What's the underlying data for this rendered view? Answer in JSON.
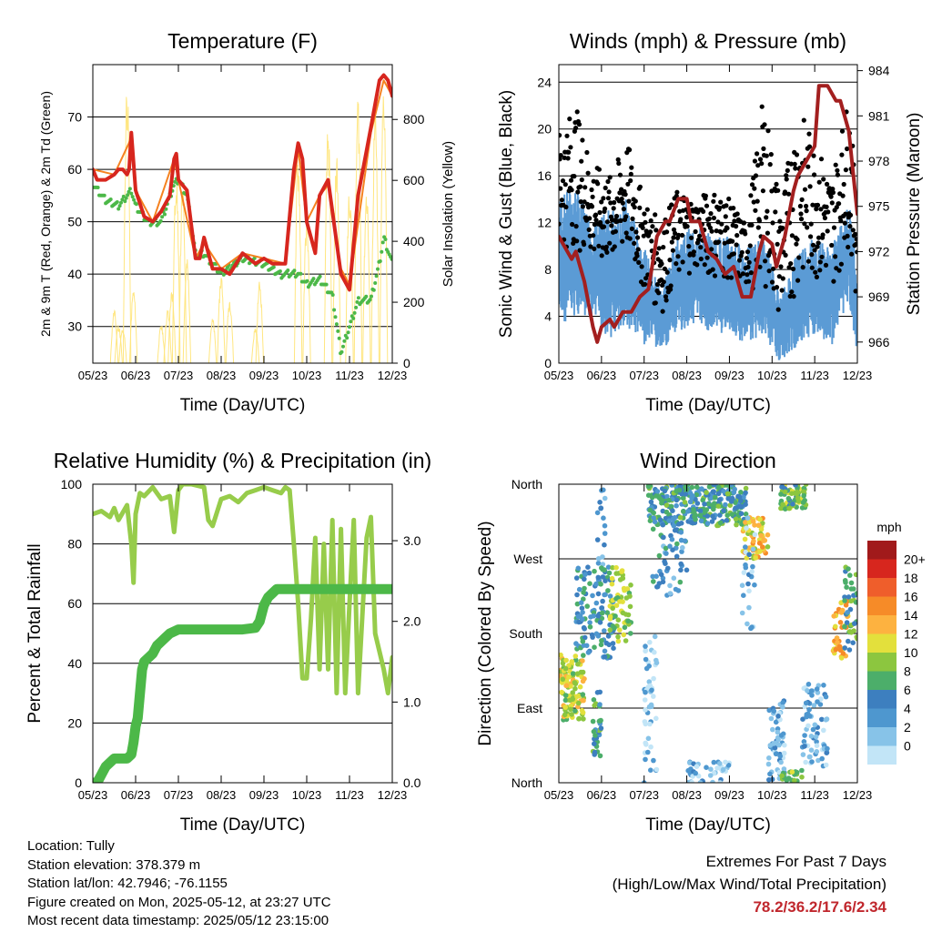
{
  "colors": {
    "temp_2m": "#d7261e",
    "temp_9m": "#f58220",
    "dewpoint": "#4cb848",
    "solar": "#ffe680",
    "wind": "#5b9bd5",
    "gust": "#000000",
    "pressure": "#a31f1f",
    "rh": "#97cc4b",
    "precip": "#4cb848",
    "speed_scale": [
      "#c2e5f7",
      "#87c3e8",
      "#4e97cf",
      "#3d7fbf",
      "#4cae6a",
      "#8cc63f",
      "#e3e03c",
      "#fdb240",
      "#f68b28",
      "#ef5e2b",
      "#d7261e",
      "#a11a1b"
    ]
  },
  "chart_data": [
    {
      "type": "line",
      "id": "temperature",
      "title": "Temperature (F)",
      "xlabel": "Time (Day/UTC)",
      "ylabel": "2m & 9m T (Red, Orange) & 2m Td (Green)",
      "y2label": "Solar Insolation (Yellow)",
      "x_ticks": [
        "05/23",
        "06/23",
        "07/23",
        "08/23",
        "09/23",
        "10/23",
        "11/23",
        "12/23"
      ],
      "xlim": [
        0,
        7
      ],
      "ylim": [
        23,
        80
      ],
      "y_ticks": [
        30,
        40,
        50,
        60,
        70
      ],
      "y2lim": [
        0,
        980
      ],
      "y2_ticks": [
        0,
        200,
        400,
        600,
        800
      ],
      "grid": true,
      "series": [
        {
          "name": "2m T",
          "color_key": "temp_2m",
          "x": [
            0,
            0.1,
            0.3,
            0.5,
            0.6,
            0.7,
            0.8,
            0.85,
            0.9,
            1.0,
            1.2,
            1.4,
            1.6,
            1.8,
            1.9,
            1.95,
            2.0,
            2.2,
            2.4,
            2.5,
            2.6,
            2.8,
            3.0,
            3.2,
            3.5,
            3.8,
            4.0,
            4.2,
            4.5,
            4.7,
            4.8,
            4.9,
            5.0,
            5.2,
            5.3,
            5.5,
            5.8,
            6.0,
            6.2,
            6.5,
            6.7,
            6.8,
            6.9,
            7.0
          ],
          "y": [
            60,
            58,
            58,
            59,
            60,
            60,
            59,
            60,
            67,
            56,
            51,
            50,
            52,
            55,
            62,
            63,
            58,
            56,
            43,
            43,
            47,
            41,
            41,
            40,
            44,
            42,
            43,
            42,
            42,
            60,
            65,
            62,
            50,
            44,
            55,
            58,
            40,
            37,
            55,
            68,
            77,
            78,
            77,
            74
          ]
        },
        {
          "name": "9m T",
          "color_key": "temp_9m",
          "x": [
            0,
            0.5,
            0.9,
            1.0,
            1.4,
            1.9,
            2.0,
            2.4,
            2.6,
            3.0,
            3.5,
            4.0,
            4.5,
            4.8,
            5.0,
            5.3,
            5.5,
            5.8,
            6.0,
            6.5,
            6.8,
            7.0
          ],
          "y": [
            60,
            59,
            66,
            56,
            50,
            62,
            58,
            43,
            46,
            41,
            44,
            43,
            42,
            64,
            50,
            55,
            57,
            41,
            38,
            67,
            77,
            74
          ]
        },
        {
          "name": "2m Td",
          "color_key": "dewpoint",
          "x": [
            0,
            0.3,
            0.6,
            0.8,
            0.9,
            1.0,
            1.3,
            1.6,
            1.9,
            2.0,
            2.2,
            2.4,
            2.6,
            3.0,
            3.5,
            4.0,
            4.4,
            4.8,
            5.0,
            5.3,
            5.6,
            5.8,
            6.0,
            6.2,
            6.5,
            6.7,
            6.8,
            7.0
          ],
          "y": [
            57,
            54,
            53,
            55,
            56,
            53,
            50,
            50,
            57,
            58,
            55,
            44,
            44,
            40,
            43,
            42,
            40,
            40,
            38,
            39,
            36,
            25,
            30,
            35,
            35,
            42,
            47,
            42
          ]
        }
      ],
      "solar_days": [
        0.5,
        0.6,
        0.7,
        0.8,
        0.95,
        1.6,
        1.75,
        1.85,
        1.95,
        2.1,
        2.2,
        2.8,
        3.0,
        3.2,
        3.8,
        3.9,
        4.8,
        5.0,
        5.5,
        5.7,
        6.0,
        6.2,
        6.4,
        6.6,
        6.8
      ],
      "solar_peaks": [
        180,
        130,
        120,
        950,
        250,
        130,
        180,
        250,
        650,
        600,
        350,
        150,
        300,
        220,
        120,
        280,
        700,
        500,
        800,
        700,
        600,
        900,
        600,
        850,
        950
      ]
    },
    {
      "type": "line",
      "id": "winds",
      "title": "Winds (mph) & Pressure (mb)",
      "xlabel": "Time (Day/UTC)",
      "ylabel": "Sonic Wind & Gust (Blue, Black)",
      "y2label": "Station Pressure (Maroon)",
      "x_ticks": [
        "05/23",
        "06/23",
        "07/23",
        "08/23",
        "09/23",
        "10/23",
        "11/23",
        "12/23"
      ],
      "xlim": [
        0,
        7
      ],
      "ylim": [
        0,
        25.5
      ],
      "y_ticks": [
        0,
        4,
        8,
        12,
        16,
        20,
        24
      ],
      "y2lim": [
        964.6,
        984.4
      ],
      "y2_ticks": [
        966,
        969,
        972,
        975,
        978,
        981,
        984
      ],
      "grid": true,
      "series": [
        {
          "name": "Pressure",
          "color_key": "pressure",
          "x": [
            0,
            0.1,
            0.3,
            0.4,
            0.6,
            0.8,
            0.9,
            1.0,
            1.2,
            1.3,
            1.5,
            1.7,
            1.9,
            2.1,
            2.3,
            2.5,
            2.6,
            2.8,
            3.0,
            3.1,
            3.3,
            3.5,
            3.7,
            3.9,
            4.1,
            4.3,
            4.5,
            4.7,
            4.8,
            5.0,
            5.1,
            5.3,
            5.5,
            5.6,
            5.8,
            6.0,
            6.1,
            6.3,
            6.5,
            6.6,
            6.8,
            7.0
          ],
          "y": [
            973,
            972.5,
            971.5,
            972,
            970,
            967,
            966,
            967,
            967.5,
            967,
            968,
            968,
            969,
            969.5,
            973,
            974,
            974,
            975.5,
            975.5,
            974,
            974,
            972,
            971.5,
            970.5,
            971,
            969,
            969,
            972,
            973,
            972.5,
            971,
            973,
            976,
            977,
            978,
            979,
            983,
            983,
            982,
            982,
            980,
            974.5
          ]
        }
      ],
      "wind_days": [
        0,
        0.4,
        0.8,
        1.2,
        1.6,
        2.0,
        2.4,
        2.8,
        3.2,
        3.6,
        4.0,
        4.4,
        4.8,
        5.2,
        5.6,
        6.0,
        6.4,
        6.8,
        7.0
      ],
      "wind_mean": [
        9,
        10,
        8,
        8,
        9,
        6,
        4,
        7,
        8,
        7,
        7,
        6,
        7,
        3,
        6,
        7,
        6,
        10,
        5
      ],
      "wind_amp": [
        4,
        4,
        3,
        4,
        4,
        3,
        2,
        3,
        3,
        3,
        3,
        3,
        3,
        2,
        3,
        3,
        3,
        3,
        3
      ],
      "gust_max": [
        20,
        22,
        17,
        16,
        19,
        14,
        12,
        15,
        14,
        15,
        14,
        12,
        23,
        14,
        22,
        19,
        16,
        23,
        13
      ]
    },
    {
      "type": "line",
      "id": "humidity",
      "title": "Relative Humidity (%) & Precipitation (in)",
      "xlabel": "Time (Day/UTC)",
      "ylabel": "Percent & Total Rainfall",
      "x_ticks": [
        "05/23",
        "06/23",
        "07/23",
        "08/23",
        "09/23",
        "10/23",
        "11/23",
        "12/23"
      ],
      "xlim": [
        0,
        7
      ],
      "ylim": [
        0,
        100
      ],
      "y_ticks": [
        0,
        20,
        40,
        60,
        80,
        100
      ],
      "y2lim": [
        0,
        3.7
      ],
      "y2_ticks": [
        "0.0",
        "1.0",
        "2.0",
        "3.0"
      ],
      "grid": true,
      "series": [
        {
          "name": "RH",
          "color_key": "rh",
          "x": [
            0,
            0.2,
            0.4,
            0.5,
            0.6,
            0.8,
            0.9,
            0.95,
            1.0,
            1.1,
            1.2,
            1.4,
            1.6,
            1.8,
            1.9,
            2.0,
            2.1,
            2.3,
            2.6,
            2.7,
            2.8,
            3.0,
            3.2,
            3.4,
            3.6,
            3.8,
            4.0,
            4.2,
            4.4,
            4.5,
            4.6,
            4.7,
            4.8,
            4.9,
            5.0,
            5.1,
            5.2,
            5.3,
            5.4,
            5.5,
            5.6,
            5.7,
            5.8,
            5.9,
            6.0,
            6.1,
            6.2,
            6.4,
            6.5,
            6.6,
            6.8,
            6.9,
            7.0
          ],
          "y": [
            90,
            91,
            89,
            92,
            88,
            93,
            80,
            67,
            90,
            97,
            96,
            99,
            95,
            96,
            84,
            98,
            100,
            100,
            99,
            88,
            86,
            95,
            96,
            94,
            97,
            98,
            99,
            98,
            97,
            99,
            98,
            80,
            60,
            35,
            35,
            55,
            82,
            38,
            80,
            38,
            88,
            30,
            85,
            30,
            60,
            88,
            30,
            82,
            89,
            50,
            38,
            30,
            42
          ]
        },
        {
          "name": "Total Rainfall",
          "color_key": "precip",
          "x": [
            0,
            0.1,
            0.2,
            0.3,
            0.5,
            0.8,
            0.9,
            0.95,
            1.0,
            1.05,
            1.1,
            1.15,
            1.2,
            1.3,
            1.4,
            1.5,
            1.6,
            1.7,
            1.8,
            2.0,
            2.5,
            3.0,
            3.5,
            3.8,
            3.9,
            4.0,
            4.1,
            4.2,
            4.3,
            4.5,
            5.0,
            5.5,
            6.0,
            6.5,
            7.0
          ],
          "y": [
            0,
            0,
            0.1,
            0.2,
            0.3,
            0.3,
            0.35,
            0.5,
            0.7,
            0.8,
            1.1,
            1.4,
            1.5,
            1.55,
            1.6,
            1.7,
            1.75,
            1.8,
            1.85,
            1.9,
            1.9,
            1.9,
            1.9,
            1.92,
            2.0,
            2.2,
            2.3,
            2.35,
            2.4,
            2.4,
            2.4,
            2.4,
            2.4,
            2.4,
            2.4
          ]
        }
      ]
    },
    {
      "type": "scatter",
      "id": "direction",
      "title": "Wind Direction",
      "xlabel": "Time (Day/UTC)",
      "ylabel": "Direction (Colored By Speed)",
      "x_ticks": [
        "05/23",
        "06/23",
        "07/23",
        "08/23",
        "09/23",
        "10/23",
        "11/23",
        "12/23"
      ],
      "xlim": [
        0,
        7
      ],
      "ylim": [
        0,
        360
      ],
      "y_tick_values": [
        0,
        90,
        180,
        270,
        360
      ],
      "y_tick_labels": [
        "North",
        "East",
        "South",
        "West",
        "North"
      ],
      "legend_title": "mph",
      "legend_labels": [
        "20+",
        "18",
        "16",
        "14",
        "12",
        "10",
        "8",
        "6",
        "4",
        "2",
        "0"
      ],
      "legend_placement": "right",
      "clusters": [
        {
          "x0": 0.0,
          "x1": 0.6,
          "y0": 75,
          "y1": 155,
          "speed": 11,
          "n": 110
        },
        {
          "x0": 0.4,
          "x1": 1.3,
          "y0": 150,
          "y1": 260,
          "speed": 6,
          "n": 120
        },
        {
          "x0": 0.8,
          "x1": 1.0,
          "y0": 30,
          "y1": 110,
          "speed": 7,
          "n": 30
        },
        {
          "x0": 0.9,
          "x1": 1.1,
          "y0": 240,
          "y1": 355,
          "speed": 5,
          "n": 20
        },
        {
          "x0": 1.2,
          "x1": 1.7,
          "y0": 170,
          "y1": 260,
          "speed": 10,
          "n": 60
        },
        {
          "x0": 2.0,
          "x1": 2.3,
          "y0": 0,
          "y1": 180,
          "speed": 2,
          "n": 50
        },
        {
          "x0": 2.1,
          "x1": 4.4,
          "y0": 310,
          "y1": 360,
          "speed": 7,
          "n": 300
        },
        {
          "x0": 2.2,
          "x1": 3.0,
          "y0": 220,
          "y1": 320,
          "speed": 5,
          "n": 60
        },
        {
          "x0": 3.0,
          "x1": 4.0,
          "y0": 0,
          "y1": 25,
          "speed": 3,
          "n": 40
        },
        {
          "x0": 4.3,
          "x1": 4.9,
          "y0": 270,
          "y1": 320,
          "speed": 13,
          "n": 60
        },
        {
          "x0": 4.3,
          "x1": 4.6,
          "y0": 180,
          "y1": 320,
          "speed": 3,
          "n": 25
        },
        {
          "x0": 4.9,
          "x1": 5.3,
          "y0": 0,
          "y1": 100,
          "speed": 3,
          "n": 60
        },
        {
          "x0": 5.2,
          "x1": 5.8,
          "y0": 330,
          "y1": 360,
          "speed": 9,
          "n": 70
        },
        {
          "x0": 5.2,
          "x1": 5.7,
          "y0": 0,
          "y1": 15,
          "speed": 9,
          "n": 20
        },
        {
          "x0": 5.7,
          "x1": 6.3,
          "y0": 20,
          "y1": 120,
          "speed": 3,
          "n": 70
        },
        {
          "x0": 6.4,
          "x1": 6.8,
          "y0": 150,
          "y1": 220,
          "speed": 14,
          "n": 40
        },
        {
          "x0": 6.7,
          "x1": 7.0,
          "y0": 160,
          "y1": 260,
          "speed": 7,
          "n": 40
        }
      ]
    }
  ],
  "info": {
    "location": "Location: Tully",
    "elevation": "Station elevation: 378.379 m",
    "latlon": "Station lat/lon: 42.7946; -76.1155",
    "created": "Figure created on Mon, 2025-05-12, at 23:27 UTC",
    "recent": "Most recent data timestamp: 2025/05/12 23:15:00"
  },
  "extremes": {
    "heading": "Extremes For Past 7 Days",
    "subheading": "(High/Low/Max Wind/Total Precipitation)",
    "values": "78.2/36.2/17.6/2.34"
  }
}
